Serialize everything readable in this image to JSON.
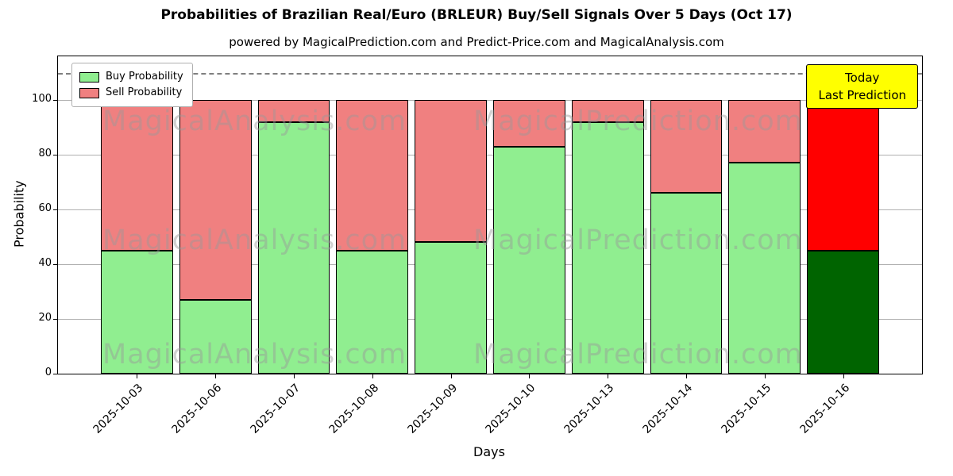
{
  "title": "Probabilities of Brazilian Real/Euro (BRLEUR) Buy/Sell Signals Over 5 Days (Oct 17)",
  "subtitle": "powered by MagicalPrediction.com and Predict-Price.com and MagicalAnalysis.com",
  "annotation": {
    "line1": "Today",
    "line2": "Last Prediction"
  },
  "watermarks": {
    "left_text": "MagicalAnalysis.com",
    "right_text": "MagicalPrediction.com"
  },
  "colors": {
    "buy": "#90ee90",
    "sell": "#f08080",
    "buy_last": "#006400",
    "sell_last": "#ff0000",
    "annotation_bg": "#ffff00",
    "grid": "#b0b0b0",
    "dashed_line": "#7f7f7f",
    "bar_edge": "#000000"
  },
  "chart_data": {
    "type": "bar",
    "stacked": true,
    "title": "Probabilities of Brazilian Real/Euro (BRLEUR) Buy/Sell Signals Over 5 Days (Oct 17)",
    "xlabel": "Days",
    "ylabel": "Probability",
    "categories": [
      "2025-10-03",
      "2025-10-06",
      "2025-10-07",
      "2025-10-08",
      "2025-10-09",
      "2025-10-10",
      "2025-10-13",
      "2025-10-14",
      "2025-10-15",
      "2025-10-16"
    ],
    "series": [
      {
        "name": "Buy Probability",
        "values": [
          45,
          27,
          92,
          45,
          48,
          83,
          92,
          66,
          77,
          45
        ]
      },
      {
        "name": "Sell Probability",
        "values": [
          55,
          73,
          8,
          55,
          52,
          17,
          8,
          34,
          23,
          55
        ]
      }
    ],
    "ylim": [
      0,
      116
    ],
    "yticks": [
      0,
      20,
      40,
      60,
      80,
      100
    ],
    "dashed_line_y": 110,
    "grid": true,
    "legend_position": "upper left",
    "highlight_last_bar": true
  }
}
